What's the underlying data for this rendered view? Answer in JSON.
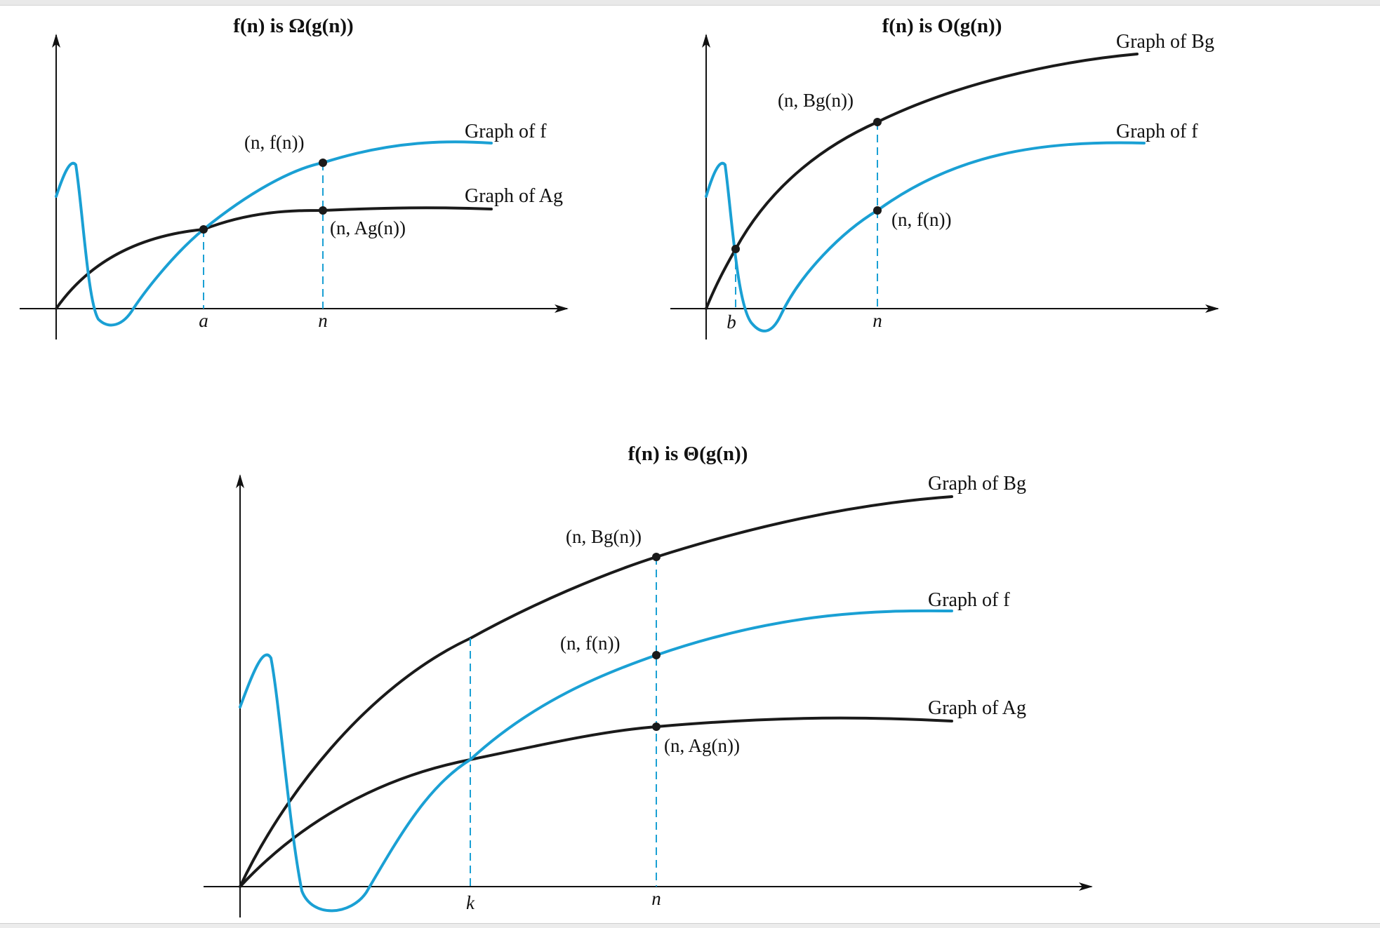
{
  "panels": {
    "omega": {
      "title": "f(n) is Ω(g(n))",
      "curve_labels": {
        "f": "Graph of f",
        "Ag": "Graph of Ag"
      },
      "points": {
        "fn": "(n, f(n))",
        "agn": "(n, Ag(n))"
      },
      "ticks": {
        "a": "a",
        "n": "n"
      }
    },
    "bigo": {
      "title": "f(n) is O(g(n))",
      "curve_labels": {
        "Bg": "Graph of Bg",
        "f": "Graph of f"
      },
      "points": {
        "bgn": "(n, Bg(n))",
        "fn": "(n, f(n))"
      },
      "ticks": {
        "b": "b",
        "n": "n"
      }
    },
    "theta": {
      "title": "f(n) is Θ(g(n))",
      "curve_labels": {
        "Bg": "Graph of Bg",
        "f": "Graph of f",
        "Ag": "Graph of Ag"
      },
      "points": {
        "bgn": "(n, Bg(n))",
        "fn": "(n, f(n))",
        "agn": "(n, Ag(n))"
      },
      "ticks": {
        "k": "k",
        "n": "n"
      }
    }
  },
  "colors": {
    "f_curve": "#1aa0d4",
    "g_curve": "#1a1a1a",
    "dashed": "#1aa0d4"
  }
}
